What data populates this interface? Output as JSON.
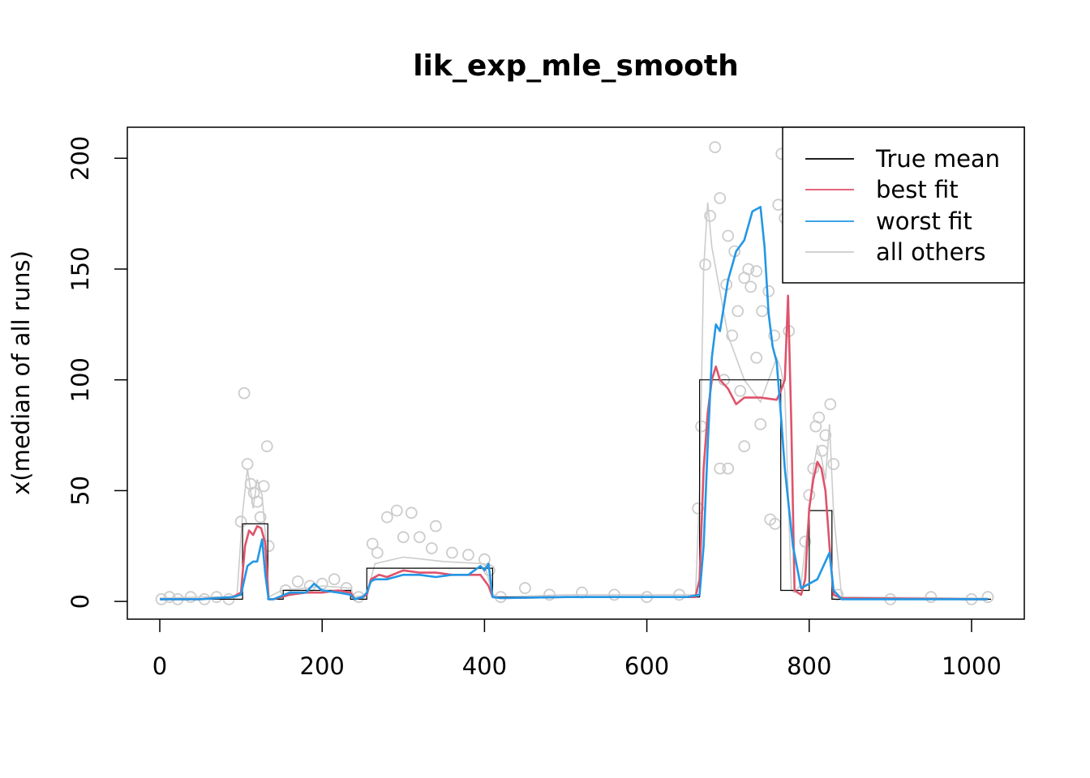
{
  "chart_data": {
    "type": "line",
    "title": "lik_exp_mle_smooth",
    "xlabel": "",
    "ylabel": "x(median of all runs)",
    "xlim": [
      -40,
      1065
    ],
    "ylim": [
      -8,
      214
    ],
    "x_ticks": [
      0,
      200,
      400,
      600,
      800,
      1000
    ],
    "x_tick_labels": [
      "0",
      "200",
      "400",
      "600",
      "800",
      "1000"
    ],
    "y_ticks": [
      0,
      50,
      100,
      150,
      200
    ],
    "y_tick_labels": [
      "0",
      "50",
      "100",
      "150",
      "200"
    ],
    "legend_position": "top-right",
    "colors": {
      "true_mean": "#000000",
      "best_fit": "#DF536B",
      "worst_fit": "#2297E6",
      "all_others": "#CCCCCC"
    },
    "legend": [
      {
        "label": "True mean",
        "color": "#000000"
      },
      {
        "label": "best fit",
        "color": "#DF536B"
      },
      {
        "label": "worst fit",
        "color": "#2297E6"
      },
      {
        "label": "all others",
        "color": "#CCCCCC"
      }
    ],
    "true_mean_segments": [
      {
        "x0": 0,
        "x1": 102,
        "y": 1
      },
      {
        "x0": 102,
        "x1": 133,
        "y": 35
      },
      {
        "x0": 133,
        "x1": 152,
        "y": 1
      },
      {
        "x0": 152,
        "x1": 235,
        "y": 5
      },
      {
        "x0": 235,
        "x1": 255,
        "y": 1
      },
      {
        "x0": 255,
        "x1": 410,
        "y": 15
      },
      {
        "x0": 410,
        "x1": 665,
        "y": 2
      },
      {
        "x0": 665,
        "x1": 765,
        "y": 100
      },
      {
        "x0": 765,
        "x1": 800,
        "y": 5
      },
      {
        "x0": 800,
        "x1": 828,
        "y": 41
      },
      {
        "x0": 828,
        "x1": 1024,
        "y": 1
      }
    ],
    "series": [
      {
        "name": "best fit",
        "x": [
          0,
          50,
          90,
          100,
          105,
          110,
          115,
          120,
          125,
          130,
          134,
          140,
          150,
          160,
          180,
          200,
          220,
          235,
          240,
          250,
          255,
          260,
          270,
          280,
          300,
          320,
          340,
          360,
          380,
          395,
          405,
          410,
          420,
          500,
          600,
          660,
          665,
          670,
          675,
          680,
          685,
          690,
          700,
          710,
          720,
          740,
          760,
          765,
          770,
          774,
          778,
          782,
          790,
          795,
          800,
          805,
          810,
          815,
          820,
          825,
          830,
          840,
          1000,
          1020
        ],
        "y": [
          1,
          1,
          2,
          4,
          25,
          32,
          30,
          34,
          33,
          26,
          1,
          1,
          2,
          3,
          4,
          4,
          5,
          4,
          1,
          2,
          3,
          10,
          12,
          11,
          14,
          13,
          13,
          12,
          12,
          12,
          7,
          2,
          1.5,
          2,
          2,
          2,
          10,
          60,
          85,
          100,
          106,
          100,
          96,
          89,
          92,
          92,
          91,
          95,
          100,
          138,
          80,
          5,
          3,
          10,
          42,
          55,
          63,
          60,
          50,
          25,
          3,
          1.5,
          1,
          1
        ]
      },
      {
        "name": "worst fit",
        "x": [
          0,
          50,
          90,
          100,
          108,
          115,
          120,
          126,
          130,
          134,
          140,
          160,
          180,
          190,
          200,
          220,
          235,
          240,
          250,
          255,
          260,
          265,
          280,
          300,
          320,
          340,
          360,
          380,
          395,
          400,
          405,
          410,
          420,
          500,
          600,
          650,
          665,
          670,
          675,
          680,
          685,
          690,
          700,
          710,
          720,
          730,
          740,
          745,
          750,
          755,
          760,
          765,
          770,
          780,
          790,
          800,
          810,
          820,
          825,
          830,
          840,
          1000,
          1020
        ],
        "y": [
          1,
          1,
          2,
          3,
          16,
          18,
          18,
          28,
          12,
          1,
          1,
          4,
          4,
          8,
          5,
          4,
          3,
          1,
          2,
          4,
          9,
          10,
          10,
          12,
          12,
          11,
          12,
          12,
          16,
          14,
          17,
          2,
          1.5,
          2,
          2,
          2,
          3,
          25,
          70,
          110,
          125,
          122,
          145,
          158,
          163,
          176,
          178,
          160,
          130,
          115,
          108,
          85,
          60,
          25,
          6,
          8,
          10,
          18,
          22,
          5,
          1,
          1,
          1
        ]
      },
      {
        "name": "all others",
        "x": [
          0,
          50,
          95,
          102,
          108,
          115,
          120,
          126,
          130,
          134,
          150,
          180,
          200,
          235,
          240,
          255,
          265,
          300,
          350,
          400,
          410,
          420,
          500,
          600,
          660,
          665,
          670,
          675,
          680,
          690,
          700,
          710,
          720,
          730,
          740,
          750,
          760,
          765,
          770,
          778,
          782,
          790,
          800,
          805,
          810,
          815,
          820,
          825,
          830,
          840,
          1000,
          1020
        ],
        "y": [
          1.5,
          2,
          2,
          40,
          60,
          42,
          55,
          48,
          30,
          2,
          5,
          6,
          7,
          6,
          2,
          3,
          17,
          20,
          18,
          17,
          3,
          2,
          3,
          3,
          3,
          50,
          150,
          180,
          160,
          140,
          120,
          110,
          100,
          95,
          90,
          100,
          110,
          105,
          95,
          5,
          4,
          8,
          40,
          60,
          70,
          65,
          55,
          80,
          40,
          2,
          1.5,
          1.5
        ]
      }
    ],
    "scatter_points": [
      [
        2,
        1
      ],
      [
        12,
        2
      ],
      [
        22,
        1
      ],
      [
        38,
        2
      ],
      [
        55,
        1
      ],
      [
        70,
        2
      ],
      [
        85,
        1
      ],
      [
        100,
        36
      ],
      [
        104,
        94
      ],
      [
        108,
        62
      ],
      [
        112,
        53
      ],
      [
        116,
        49
      ],
      [
        120,
        45
      ],
      [
        124,
        38
      ],
      [
        128,
        52
      ],
      [
        132,
        70
      ],
      [
        134,
        25
      ],
      [
        155,
        5
      ],
      [
        170,
        9
      ],
      [
        185,
        7
      ],
      [
        200,
        8
      ],
      [
        215,
        10
      ],
      [
        230,
        6
      ],
      [
        245,
        2
      ],
      [
        262,
        26
      ],
      [
        268,
        22
      ],
      [
        280,
        38
      ],
      [
        292,
        41
      ],
      [
        300,
        29
      ],
      [
        310,
        40
      ],
      [
        320,
        29
      ],
      [
        335,
        24
      ],
      [
        340,
        34
      ],
      [
        360,
        22
      ],
      [
        380,
        21
      ],
      [
        400,
        19
      ],
      [
        406,
        14
      ],
      [
        420,
        2
      ],
      [
        450,
        6
      ],
      [
        480,
        3
      ],
      [
        520,
        4
      ],
      [
        560,
        3
      ],
      [
        600,
        2
      ],
      [
        640,
        3
      ],
      [
        663,
        42
      ],
      [
        667,
        79
      ],
      [
        672,
        152
      ],
      [
        678,
        174
      ],
      [
        684,
        205
      ],
      [
        690,
        182
      ],
      [
        700,
        165
      ],
      [
        708,
        158
      ],
      [
        712,
        131
      ],
      [
        720,
        146
      ],
      [
        728,
        142
      ],
      [
        735,
        149
      ],
      [
        742,
        131
      ],
      [
        750,
        140
      ],
      [
        757,
        120
      ],
      [
        762,
        179
      ],
      [
        766,
        202
      ],
      [
        770,
        173
      ],
      [
        775,
        122
      ],
      [
        795,
        27
      ],
      [
        800,
        48
      ],
      [
        805,
        60
      ],
      [
        808,
        79
      ],
      [
        812,
        83
      ],
      [
        816,
        68
      ],
      [
        820,
        75
      ],
      [
        826,
        89
      ],
      [
        830,
        62
      ],
      [
        835,
        3
      ],
      [
        900,
        1
      ],
      [
        950,
        2
      ],
      [
        1000,
        1
      ],
      [
        1020,
        2
      ],
      [
        700,
        60
      ],
      [
        720,
        70
      ],
      [
        740,
        80
      ],
      [
        752,
        37
      ],
      [
        758,
        35
      ],
      [
        735,
        110
      ],
      [
        715,
        95
      ],
      [
        705,
        120
      ],
      [
        695,
        100
      ],
      [
        690,
        60
      ],
      [
        698,
        143
      ],
      [
        725,
        150
      ]
    ]
  }
}
